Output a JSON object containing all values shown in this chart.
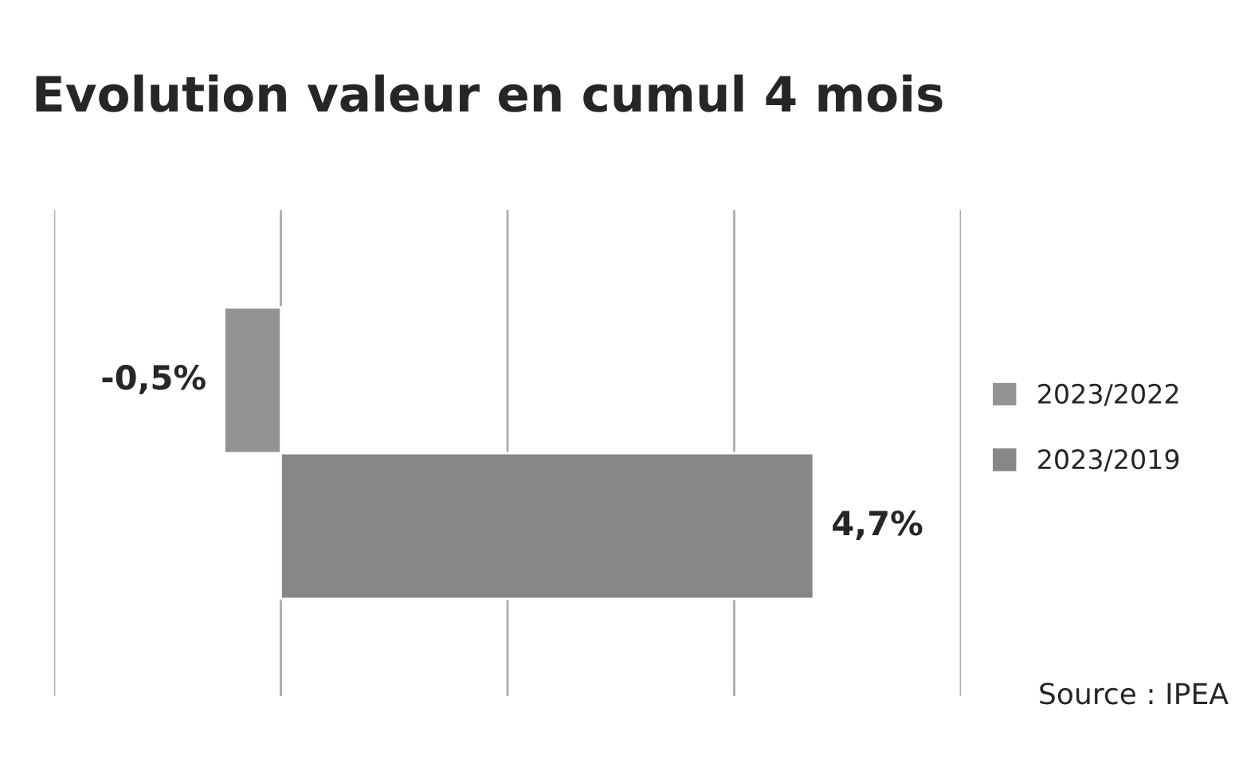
{
  "chart_data": {
    "type": "bar",
    "orientation": "horizontal",
    "title": "Evolution valeur en cumul 4 mois",
    "categories": [
      null
    ],
    "series": [
      {
        "name": "2023/2022",
        "color": "#939393",
        "values": [
          -0.5
        ],
        "value_labels": [
          "-0,5%"
        ]
      },
      {
        "name": "2023/2019",
        "color": "#868686",
        "values": [
          4.7
        ],
        "value_labels": [
          "4,7%"
        ]
      }
    ],
    "xlim": [
      -2,
      6
    ],
    "xticks": [
      {
        "value": -2,
        "label": null
      },
      {
        "value": 0,
        "label": null
      },
      {
        "value": 2,
        "label": null
      },
      {
        "value": 4,
        "label": null
      },
      {
        "value": 6,
        "label": null
      }
    ],
    "tick_labels": false,
    "grid": "x",
    "legend": "right",
    "annotations": [
      "Source : IPEA"
    ]
  }
}
